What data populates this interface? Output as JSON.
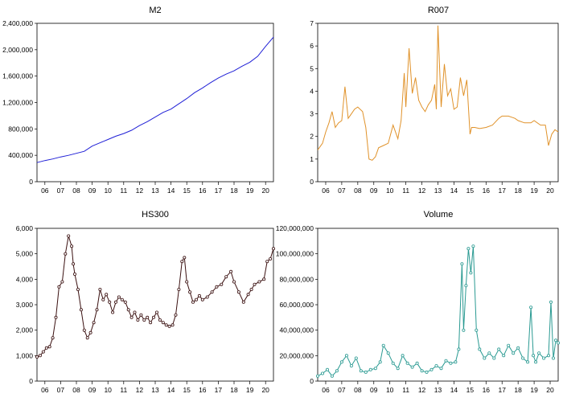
{
  "chart_data": [
    {
      "type": "line",
      "title": "M2",
      "xlim": [
        2005.5,
        2020.5
      ],
      "ylim": [
        0,
        2400000
      ],
      "yticks": [
        0,
        400000,
        800000,
        1200000,
        1600000,
        2000000,
        2400000
      ],
      "ytick_labels": [
        "0",
        "400,000",
        "800,000",
        "1,200,000",
        "1,600,000",
        "2,000,000",
        "2,400,000"
      ],
      "xtick_labels": [
        "06",
        "07",
        "08",
        "09",
        "10",
        "11",
        "12",
        "13",
        "14",
        "15",
        "16",
        "17",
        "18",
        "19",
        "20"
      ],
      "color": "#1f1fd6",
      "markers": false,
      "series": [
        {
          "x": [
            2005.5,
            2006,
            2006.5,
            2007,
            2007.5,
            2008,
            2008.5,
            2009,
            2009.5,
            2010,
            2010.5,
            2011,
            2011.5,
            2012,
            2012.5,
            2013,
            2013.5,
            2014,
            2014.5,
            2015,
            2015.5,
            2016,
            2016.5,
            2017,
            2017.5,
            2018,
            2018.5,
            2019,
            2019.5,
            2020,
            2020.5
          ],
          "values": [
            290000,
            320000,
            345000,
            375000,
            400000,
            430000,
            460000,
            540000,
            590000,
            640000,
            690000,
            730000,
            780000,
            850000,
            910000,
            980000,
            1050000,
            1100000,
            1180000,
            1260000,
            1350000,
            1420000,
            1500000,
            1570000,
            1630000,
            1680000,
            1750000,
            1810000,
            1900000,
            2050000,
            2190000
          ]
        }
      ]
    },
    {
      "type": "line",
      "title": "R007",
      "xlim": [
        2005.5,
        2020.5
      ],
      "ylim": [
        0,
        7
      ],
      "yticks": [
        0,
        1,
        2,
        3,
        4,
        5,
        6,
        7
      ],
      "ytick_labels": [
        "0",
        "1",
        "2",
        "3",
        "4",
        "5",
        "6",
        "7"
      ],
      "xtick_labels": [
        "06",
        "07",
        "08",
        "09",
        "10",
        "11",
        "12",
        "13",
        "14",
        "15",
        "16",
        "17",
        "18",
        "19",
        "20"
      ],
      "color": "#e0922a",
      "markers": false,
      "series": [
        {
          "x": [
            2005.5,
            2005.8,
            2006.0,
            2006.2,
            2006.4,
            2006.6,
            2006.8,
            2007.0,
            2007.2,
            2007.4,
            2007.6,
            2007.8,
            2008.0,
            2008.3,
            2008.5,
            2008.7,
            2008.9,
            2009.1,
            2009.3,
            2009.6,
            2009.9,
            2010.2,
            2010.5,
            2010.7,
            2010.9,
            2011.0,
            2011.2,
            2011.4,
            2011.6,
            2011.8,
            2012.0,
            2012.2,
            2012.4,
            2012.6,
            2012.8,
            2012.9,
            2013.0,
            2013.2,
            2013.4,
            2013.6,
            2013.8,
            2014.0,
            2014.2,
            2014.4,
            2014.6,
            2014.8,
            2015.0,
            2015.1,
            2015.3,
            2015.6,
            2016.0,
            2016.4,
            2016.8,
            2017.0,
            2017.4,
            2017.8,
            2018.0,
            2018.4,
            2018.8,
            2019.0,
            2019.4,
            2019.7,
            2019.9,
            2020.1,
            2020.3,
            2020.5
          ],
          "values": [
            1.4,
            1.7,
            2.2,
            2.6,
            3.1,
            2.4,
            2.6,
            2.7,
            4.2,
            2.8,
            3.0,
            3.2,
            3.3,
            3.1,
            2.4,
            1.0,
            0.95,
            1.1,
            1.5,
            1.6,
            1.7,
            2.5,
            1.9,
            2.7,
            4.8,
            3.3,
            5.9,
            3.9,
            4.6,
            3.6,
            3.3,
            3.1,
            3.4,
            3.6,
            4.3,
            3.2,
            6.9,
            3.3,
            5.2,
            3.8,
            4.1,
            3.2,
            3.3,
            4.6,
            3.8,
            4.5,
            2.1,
            2.4,
            2.4,
            2.35,
            2.4,
            2.5,
            2.8,
            2.9,
            2.9,
            2.8,
            2.7,
            2.6,
            2.6,
            2.7,
            2.5,
            2.5,
            1.6,
            2.1,
            2.3,
            2.2
          ]
        }
      ]
    },
    {
      "type": "line",
      "title": "HS300",
      "xlim": [
        2005.5,
        2020.5
      ],
      "ylim": [
        0,
        6000
      ],
      "yticks": [
        0,
        1000,
        2000,
        3000,
        4000,
        5000,
        6000
      ],
      "ytick_labels": [
        "0",
        "1,000",
        "2,000",
        "3,000",
        "4,000",
        "5,000",
        "6,000"
      ],
      "xtick_labels": [
        "06",
        "07",
        "08",
        "09",
        "10",
        "11",
        "12",
        "13",
        "14",
        "15",
        "16",
        "17",
        "18",
        "19",
        "20"
      ],
      "color": "#3a1010",
      "markers": true,
      "series": [
        {
          "x": [
            2005.5,
            2005.7,
            2005.9,
            2006.1,
            2006.3,
            2006.5,
            2006.7,
            2006.9,
            2007.1,
            2007.3,
            2007.5,
            2007.7,
            2007.8,
            2007.9,
            2008.1,
            2008.3,
            2008.5,
            2008.7,
            2008.9,
            2009.1,
            2009.3,
            2009.5,
            2009.7,
            2009.9,
            2010.1,
            2010.3,
            2010.5,
            2010.7,
            2010.9,
            2011.1,
            2011.3,
            2011.5,
            2011.7,
            2011.9,
            2012.1,
            2012.3,
            2012.5,
            2012.7,
            2012.9,
            2013.1,
            2013.3,
            2013.5,
            2013.7,
            2013.9,
            2014.1,
            2014.3,
            2014.5,
            2014.7,
            2014.85,
            2015.0,
            2015.2,
            2015.4,
            2015.6,
            2015.8,
            2016.0,
            2016.3,
            2016.6,
            2016.9,
            2017.2,
            2017.5,
            2017.8,
            2018.0,
            2018.3,
            2018.6,
            2018.9,
            2019.1,
            2019.3,
            2019.6,
            2019.9,
            2020.1,
            2020.3,
            2020.5
          ],
          "values": [
            950,
            1000,
            1150,
            1300,
            1350,
            1700,
            2500,
            3700,
            3900,
            5000,
            5700,
            5300,
            4600,
            4200,
            3600,
            2800,
            2000,
            1700,
            1900,
            2300,
            2800,
            3600,
            3200,
            3400,
            3100,
            2700,
            3100,
            3300,
            3200,
            3100,
            2800,
            2500,
            2700,
            2400,
            2600,
            2400,
            2500,
            2300,
            2500,
            2700,
            2400,
            2300,
            2200,
            2150,
            2200,
            2600,
            3600,
            4700,
            4850,
            3900,
            3500,
            3100,
            3200,
            3350,
            3200,
            3300,
            3500,
            3700,
            3800,
            4100,
            4300,
            3900,
            3500,
            3100,
            3400,
            3600,
            3800,
            3900,
            4000,
            4700,
            4800,
            5200
          ]
        }
      ]
    },
    {
      "type": "line",
      "title": "Volume",
      "xlim": [
        2005.5,
        2020.5
      ],
      "ylim": [
        0,
        120000000
      ],
      "yticks": [
        0,
        20000000,
        40000000,
        60000000,
        80000000,
        100000000,
        120000000
      ],
      "ytick_labels": [
        "0",
        "20,000,000",
        "40,000,000",
        "60,000,000",
        "80,000,000",
        "100,000,000",
        "120,000,000"
      ],
      "xtick_labels": [
        "06",
        "07",
        "08",
        "09",
        "10",
        "11",
        "12",
        "13",
        "14",
        "15",
        "16",
        "17",
        "18",
        "19",
        "20"
      ],
      "color": "#2a9a92",
      "markers": true,
      "series": [
        {
          "x": [
            2005.5,
            2005.8,
            2006.1,
            2006.4,
            2006.7,
            2007.0,
            2007.3,
            2007.6,
            2007.9,
            2008.2,
            2008.5,
            2008.8,
            2009.1,
            2009.4,
            2009.6,
            2009.9,
            2010.2,
            2010.5,
            2010.8,
            2011.1,
            2011.4,
            2011.7,
            2012.0,
            2012.3,
            2012.6,
            2012.9,
            2013.2,
            2013.5,
            2013.8,
            2014.1,
            2014.3,
            2014.5,
            2014.6,
            2014.75,
            2014.9,
            2015.05,
            2015.2,
            2015.4,
            2015.6,
            2015.9,
            2016.2,
            2016.5,
            2016.8,
            2017.1,
            2017.4,
            2017.7,
            2018.0,
            2018.3,
            2018.6,
            2018.8,
            2018.95,
            2019.1,
            2019.3,
            2019.6,
            2019.9,
            2020.05,
            2020.2,
            2020.35,
            2020.5
          ],
          "values": [
            4000000,
            6000000,
            9000000,
            4000000,
            8000000,
            15000000,
            20000000,
            12000000,
            18000000,
            8000000,
            7000000,
            9000000,
            10000000,
            15000000,
            28000000,
            22000000,
            14000000,
            10000000,
            20000000,
            14000000,
            11000000,
            14000000,
            8000000,
            7000000,
            9000000,
            12000000,
            10000000,
            16000000,
            14000000,
            15000000,
            25000000,
            92000000,
            40000000,
            75000000,
            104000000,
            85000000,
            106000000,
            40000000,
            25000000,
            18000000,
            22000000,
            18000000,
            25000000,
            20000000,
            28000000,
            22000000,
            26000000,
            18000000,
            15000000,
            58000000,
            20000000,
            15000000,
            22000000,
            18000000,
            20000000,
            62000000,
            18000000,
            32000000,
            30000000
          ]
        }
      ]
    }
  ]
}
